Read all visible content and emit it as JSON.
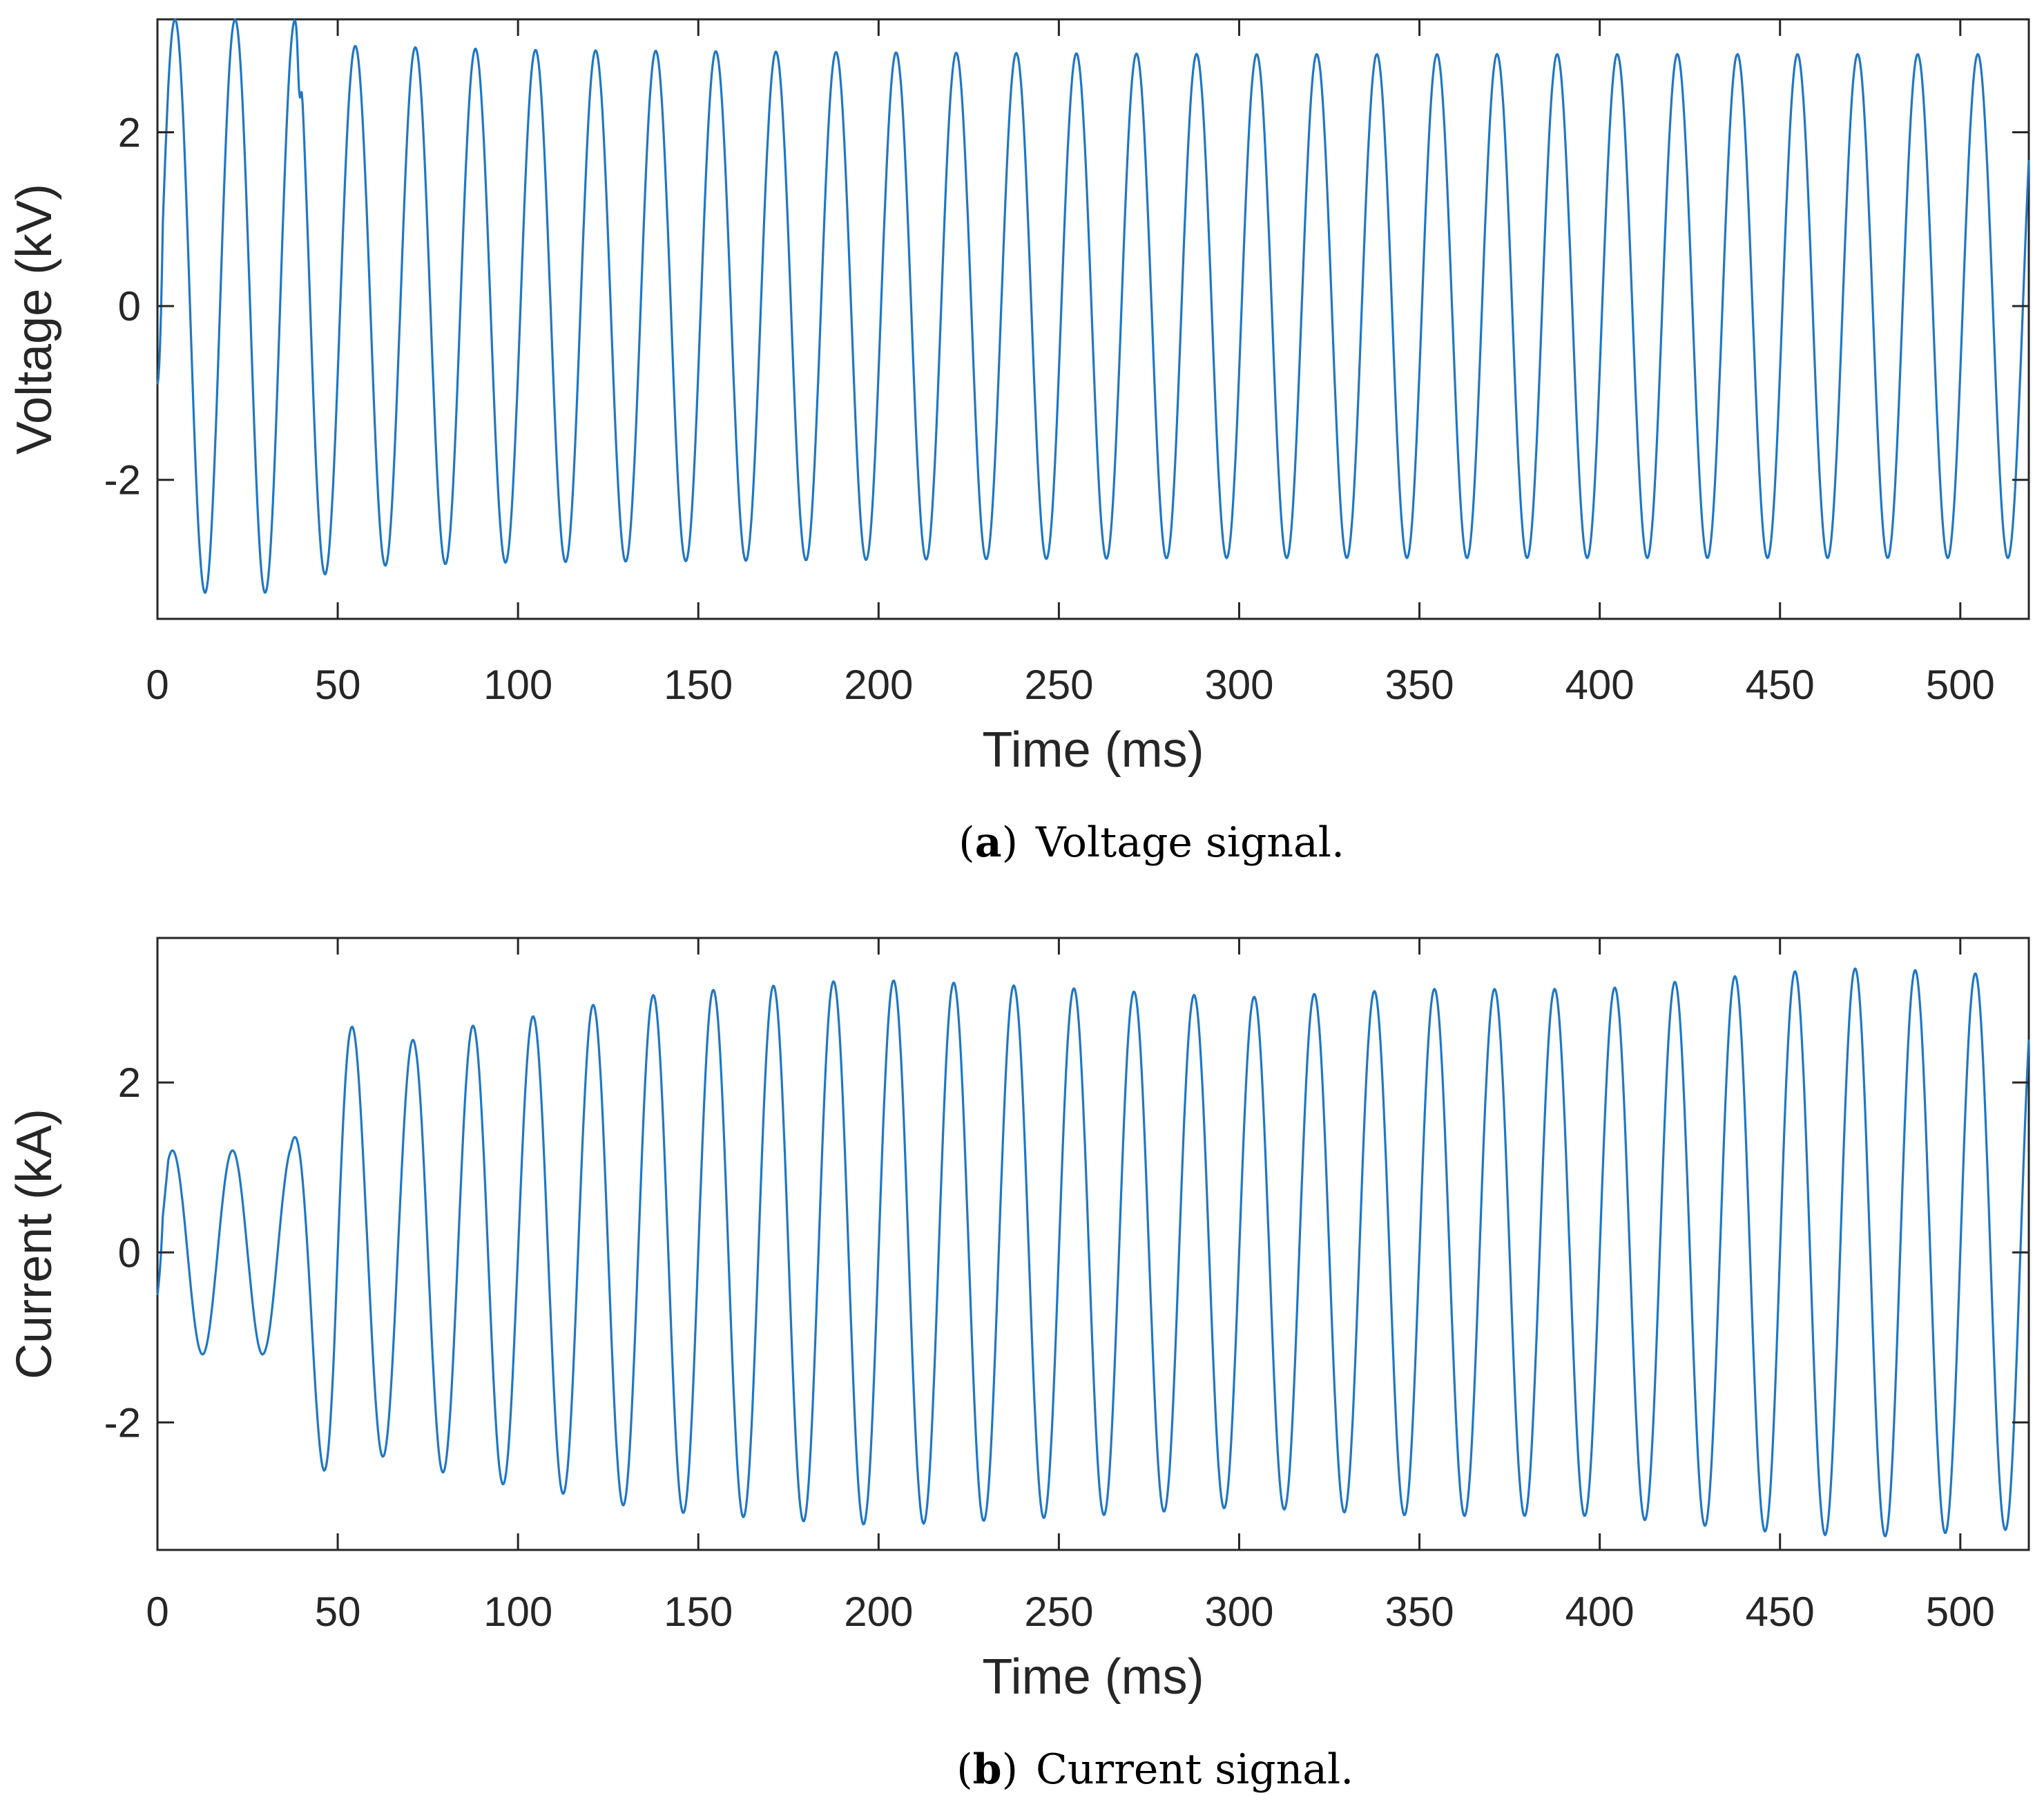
{
  "chart_data": [
    {
      "type": "line",
      "id": "voltage",
      "series": [
        {
          "name": "Voltage",
          "color": "#1f77c4",
          "signal": {
            "frequency_hz": 60,
            "phase_deg": -15,
            "start_value": -0.9,
            "envelope": {
              "t": [
                0,
                3,
                38,
                50,
                100,
                200,
                300,
                519
              ],
              "amplitude": [
                3.05,
                3.3,
                3.3,
                3.0,
                2.95,
                2.92,
                2.9,
                2.9
              ]
            },
            "glitches": [
              {
                "t": 39.5,
                "value": 2.4
              }
            ]
          }
        }
      ],
      "xlabel": "Time (ms)",
      "ylabel": "Voltage (kV)",
      "xlim": [
        0,
        519
      ],
      "ylim": [
        -3.6,
        3.3
      ],
      "xticks": [
        0,
        50,
        100,
        150,
        200,
        250,
        300,
        350,
        400,
        450,
        500
      ],
      "yticks": [
        -2,
        0,
        2
      ],
      "ytick_labels": [
        "-2",
        "0",
        "2"
      ],
      "caption_label": "a",
      "caption_text": "Voltage signal."
    },
    {
      "type": "line",
      "id": "current",
      "series": [
        {
          "name": "Current",
          "color": "#1f77c4",
          "signal": {
            "frequency_hz": 60,
            "phase_deg": 0,
            "start_value": -0.5,
            "envelope": {
              "t": [
                0,
                3,
                30,
                37,
                42,
                49,
                58,
                75,
                91,
                108,
                125,
                141,
                158,
                191,
                208,
                258,
                300,
                350,
                400,
                450,
                475,
                519
              ],
              "amplitude": [
                0.4,
                1.2,
                1.2,
                1.25,
                1.9,
                3.05,
                2.35,
                2.55,
                2.7,
                2.8,
                2.95,
                3.05,
                3.1,
                3.2,
                3.2,
                3.1,
                3.0,
                3.1,
                3.1,
                3.3,
                3.35,
                3.25
              ]
            }
          }
        }
      ],
      "xlabel": "Time (ms)",
      "ylabel": "Current (kA)",
      "xlim": [
        0,
        519
      ],
      "ylim": [
        -3.5,
        3.7
      ],
      "xticks": [
        0,
        50,
        100,
        150,
        200,
        250,
        300,
        350,
        400,
        450,
        500
      ],
      "yticks": [
        -2,
        0,
        2
      ],
      "ytick_labels": [
        "-2",
        "0",
        "2"
      ],
      "caption_label": "b",
      "caption_text": "Current signal."
    }
  ]
}
